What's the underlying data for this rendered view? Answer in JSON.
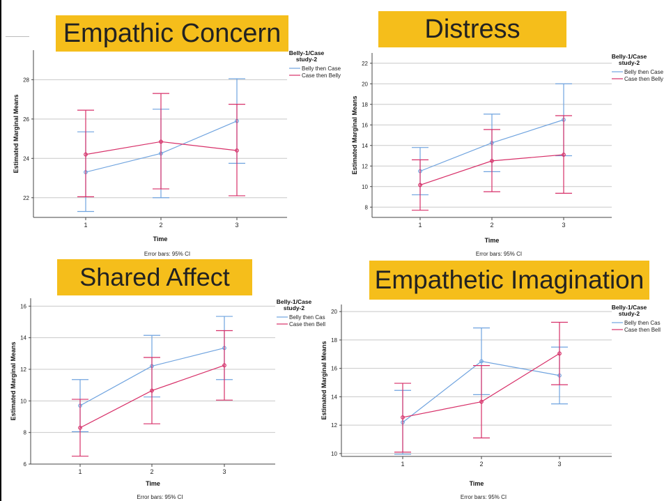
{
  "colors": {
    "series1": "#6fa3df",
    "series2": "#d72f68",
    "title_bg": "#f5be1b"
  },
  "chart_data": [
    {
      "type": "line",
      "title": "Empathic Concern",
      "xlabel": "Time",
      "ylabel": "Estimated Marginal Means",
      "categories": [
        "1",
        "2",
        "3"
      ],
      "ylim": [
        21,
        29.5
      ],
      "yticks": [
        22,
        24,
        26,
        28
      ],
      "legend_title_line1": "Belly-1/Case",
      "legend_title_line2": "study-2",
      "legend_placement": "right",
      "grid": true,
      "series": [
        {
          "name": "Belly then Case",
          "values": [
            23.3,
            24.25,
            25.9
          ],
          "ci_low": [
            21.3,
            22.0,
            23.75
          ],
          "ci_high": [
            25.35,
            26.5,
            28.05
          ]
        },
        {
          "name": "Case then Belly",
          "values": [
            24.2,
            24.85,
            24.4
          ],
          "ci_low": [
            22.05,
            22.45,
            22.1
          ],
          "ci_high": [
            26.45,
            27.3,
            26.75
          ]
        }
      ],
      "note": "Error bars: 95% CI"
    },
    {
      "type": "line",
      "title": "Distress",
      "xlabel": "Time",
      "ylabel": "Estimated Marginal Means",
      "categories": [
        "1",
        "2",
        "3"
      ],
      "ylim": [
        7,
        23
      ],
      "yticks": [
        8,
        10,
        12,
        14,
        16,
        18,
        20,
        22
      ],
      "legend_title_line1": "Belly-1/Case",
      "legend_title_line2": "study-2",
      "legend_placement": "right",
      "grid": true,
      "series": [
        {
          "name": "Belly then Case",
          "values": [
            11.5,
            14.25,
            16.5
          ],
          "ci_low": [
            9.2,
            11.45,
            13.0
          ],
          "ci_high": [
            13.8,
            17.05,
            20.0
          ]
        },
        {
          "name": "Case then Belly",
          "values": [
            10.15,
            12.5,
            13.1
          ],
          "ci_low": [
            7.7,
            9.5,
            9.35
          ],
          "ci_high": [
            12.6,
            15.55,
            16.9
          ]
        }
      ],
      "note": "Error bars: 95% CI"
    },
    {
      "type": "line",
      "title": "Shared Affect",
      "xlabel": "Time",
      "ylabel": "Estimated Marginal Means",
      "categories": [
        "1",
        "2",
        "3"
      ],
      "ylim": [
        6,
        16.5
      ],
      "yticks": [
        6,
        8,
        10,
        12,
        14,
        16
      ],
      "legend_title_line1": "Belly-1/Case",
      "legend_title_line2": "study-2",
      "legend_placement": "right",
      "grid": true,
      "series": [
        {
          "name": "Belly then Cas",
          "values": [
            9.7,
            12.2,
            13.35
          ],
          "ci_low": [
            8.05,
            10.25,
            11.35
          ],
          "ci_high": [
            11.35,
            14.15,
            15.35
          ]
        },
        {
          "name": "Case then Bell",
          "values": [
            8.3,
            10.65,
            12.25
          ],
          "ci_low": [
            6.5,
            8.55,
            10.05
          ],
          "ci_high": [
            10.1,
            12.75,
            14.45
          ]
        }
      ],
      "note": "Error bars: 95% CI"
    },
    {
      "type": "line",
      "title": "Empathetic Imagination",
      "xlabel": "Time",
      "ylabel": "Estimated Marginal Means",
      "categories": [
        "1",
        "2",
        "3"
      ],
      "ylim": [
        9.8,
        20.5
      ],
      "yticks": [
        10,
        12,
        14,
        16,
        18,
        20
      ],
      "legend_title_line1": "Belly-1/Case",
      "legend_title_line2": "study-2",
      "legend_placement": "right",
      "grid": true,
      "series": [
        {
          "name": "Belly then Cas",
          "values": [
            12.2,
            16.5,
            15.5
          ],
          "ci_low": [
            9.95,
            14.15,
            13.5
          ],
          "ci_high": [
            14.45,
            18.85,
            17.5
          ]
        },
        {
          "name": "Case then Bell",
          "values": [
            12.55,
            13.65,
            17.05
          ],
          "ci_low": [
            10.1,
            11.1,
            14.85
          ],
          "ci_high": [
            14.95,
            16.2,
            19.25
          ]
        }
      ],
      "note": "Error bars: 95% CI"
    }
  ]
}
